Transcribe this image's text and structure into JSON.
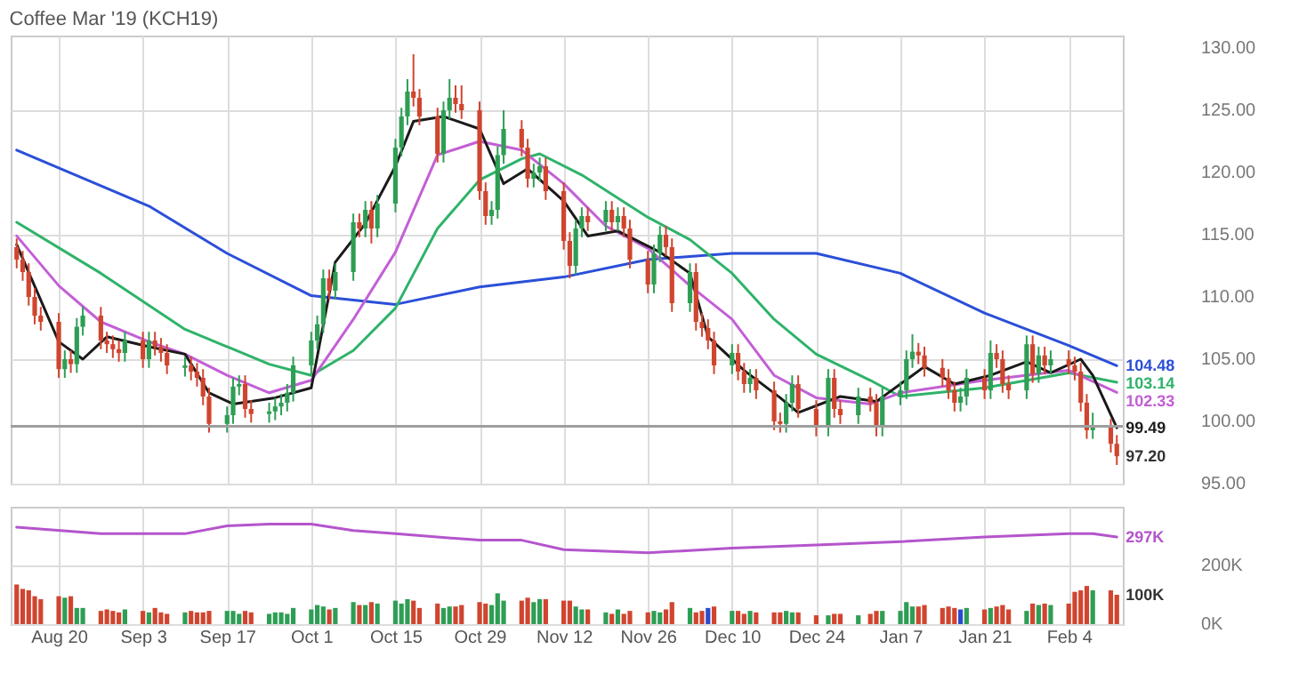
{
  "chart_data": [
    {
      "type": "candlestick",
      "title": "Coffee Mar '19 (KCH19)",
      "x": [
        "2018-08-13",
        "2018-08-14",
        "2018-08-15",
        "2018-08-16",
        "2018-08-17",
        "2018-08-20",
        "2018-08-21",
        "2018-08-22",
        "2018-08-23",
        "2018-08-24",
        "2018-08-27",
        "2018-08-28",
        "2018-08-29",
        "2018-08-30",
        "2018-08-31",
        "2018-09-03",
        "2018-09-04",
        "2018-09-05",
        "2018-09-06",
        "2018-09-07",
        "2018-09-10",
        "2018-09-11",
        "2018-09-12",
        "2018-09-13",
        "2018-09-14",
        "2018-09-17",
        "2018-09-18",
        "2018-09-19",
        "2018-09-20",
        "2018-09-21",
        "2018-09-24",
        "2018-09-25",
        "2018-09-26",
        "2018-09-27",
        "2018-09-28",
        "2018-10-01",
        "2018-10-02",
        "2018-10-03",
        "2018-10-04",
        "2018-10-05",
        "2018-10-08",
        "2018-10-09",
        "2018-10-10",
        "2018-10-11",
        "2018-10-12",
        "2018-10-15",
        "2018-10-16",
        "2018-10-17",
        "2018-10-18",
        "2018-10-19",
        "2018-10-22",
        "2018-10-23",
        "2018-10-24",
        "2018-10-25",
        "2018-10-26",
        "2018-10-29",
        "2018-10-30",
        "2018-10-31",
        "2018-11-01",
        "2018-11-02",
        "2018-11-05",
        "2018-11-06",
        "2018-11-07",
        "2018-11-08",
        "2018-11-09",
        "2018-11-12",
        "2018-11-13",
        "2018-11-14",
        "2018-11-15",
        "2018-11-16",
        "2018-11-19",
        "2018-11-20",
        "2018-11-21",
        "2018-11-22",
        "2018-11-23",
        "2018-11-26",
        "2018-11-27",
        "2018-11-28",
        "2018-11-29",
        "2018-11-30",
        "2018-12-03",
        "2018-12-04",
        "2018-12-05",
        "2018-12-06",
        "2018-12-07",
        "2018-12-10",
        "2018-12-11",
        "2018-12-12",
        "2018-12-13",
        "2018-12-14",
        "2018-12-17",
        "2018-12-18",
        "2018-12-19",
        "2018-12-20",
        "2018-12-21",
        "2018-12-24",
        "2018-12-26",
        "2018-12-27",
        "2018-12-28",
        "2018-12-31",
        "2019-01-02",
        "2019-01-03",
        "2019-01-04",
        "2019-01-07",
        "2019-01-08",
        "2019-01-09",
        "2019-01-10",
        "2019-01-11",
        "2019-01-14",
        "2019-01-15",
        "2019-01-16",
        "2019-01-17",
        "2019-01-18",
        "2019-01-21",
        "2019-01-22",
        "2019-01-23",
        "2019-01-24",
        "2019-01-25",
        "2019-01-28",
        "2019-01-29",
        "2019-01-30",
        "2019-01-31",
        "2019-02-01",
        "2019-02-04",
        "2019-02-05",
        "2019-02-06",
        "2019-02-07",
        "2019-02-08",
        "2019-02-11",
        "2019-02-12"
      ],
      "ohlc": [
        [
          114.0,
          114.7,
          112.3,
          113.0
        ],
        [
          113.0,
          113.7,
          111.3,
          112.0
        ],
        [
          112.0,
          112.7,
          109.3,
          110.0
        ],
        [
          110.0,
          110.7,
          107.8,
          108.5
        ],
        [
          108.5,
          109.2,
          107.3,
          108.0
        ],
        [
          108.0,
          108.7,
          103.5,
          104.2
        ],
        [
          104.2,
          105.7,
          103.5,
          105.0
        ],
        [
          105.0,
          105.7,
          103.9,
          104.6
        ],
        [
          104.6,
          108.3,
          103.9,
          107.6
        ],
        [
          107.6,
          109.2,
          106.9,
          108.5
        ],
        [
          108.5,
          109.2,
          105.8,
          106.5
        ],
        [
          106.5,
          107.2,
          105.5,
          106.2
        ],
        [
          106.2,
          106.9,
          105.1,
          105.8
        ],
        [
          105.8,
          106.5,
          104.8,
          105.5
        ],
        [
          105.5,
          107.2,
          104.8,
          106.5
        ],
        [
          106.5,
          107.2,
          104.3,
          105.0
        ],
        [
          105.0,
          107.2,
          104.3,
          106.5
        ],
        [
          106.5,
          107.2,
          105.3,
          106.0
        ],
        [
          106.0,
          106.7,
          104.8,
          105.5
        ],
        [
          105.5,
          106.2,
          103.8,
          104.5
        ],
        [
          104.3,
          105.2,
          103.6,
          104.5
        ],
        [
          104.5,
          105.2,
          103.3,
          104.0
        ],
        [
          104.0,
          104.7,
          102.8,
          103.5
        ],
        [
          103.5,
          104.2,
          101.3,
          102.0
        ],
        [
          102.0,
          102.7,
          99.1,
          99.8
        ],
        [
          99.8,
          101.2,
          99.1,
          100.5
        ],
        [
          100.5,
          103.5,
          99.8,
          102.8
        ],
        [
          102.8,
          103.7,
          102.1,
          103.0
        ],
        [
          103.0,
          103.7,
          100.3,
          101.0
        ],
        [
          101.0,
          101.7,
          99.9,
          100.6
        ],
        [
          100.6,
          101.5,
          99.9,
          100.8
        ],
        [
          100.8,
          101.9,
          100.1,
          101.2
        ],
        [
          101.2,
          102.2,
          100.5,
          101.5
        ],
        [
          101.5,
          103.0,
          100.8,
          102.3
        ],
        [
          102.3,
          105.2,
          101.6,
          104.5
        ],
        [
          104.5,
          107.2,
          103.8,
          106.5
        ],
        [
          106.5,
          108.5,
          105.8,
          107.8
        ],
        [
          107.8,
          112.2,
          107.1,
          111.5
        ],
        [
          111.5,
          112.2,
          109.8,
          110.5
        ],
        [
          110.5,
          112.7,
          109.8,
          112.0
        ],
        [
          112.0,
          116.7,
          111.3,
          116.0
        ],
        [
          116.0,
          116.7,
          114.8,
          115.5
        ],
        [
          115.5,
          117.7,
          114.8,
          117.0
        ],
        [
          117.0,
          117.7,
          114.3,
          115.5
        ],
        [
          115.5,
          118.2,
          114.8,
          117.5
        ],
        [
          117.5,
          122.7,
          116.8,
          122.0
        ],
        [
          122.0,
          125.2,
          121.3,
          124.5
        ],
        [
          124.5,
          127.5,
          123.8,
          126.5
        ],
        [
          126.5,
          129.5,
          125.3,
          126.0
        ],
        [
          126.0,
          126.7,
          123.8,
          124.5
        ],
        [
          124.5,
          125.2,
          120.8,
          121.5
        ],
        [
          121.5,
          125.7,
          120.8,
          125.0
        ],
        [
          125.0,
          127.5,
          124.3,
          126.0
        ],
        [
          126.0,
          127.0,
          124.8,
          125.5
        ],
        [
          125.5,
          127.0,
          124.3,
          125.0
        ],
        [
          125.0,
          125.7,
          117.8,
          118.5
        ],
        [
          118.5,
          119.2,
          115.8,
          116.5
        ],
        [
          116.5,
          117.7,
          115.8,
          117.0
        ],
        [
          117.0,
          122.1,
          116.3,
          121.4
        ],
        [
          121.4,
          125.0,
          120.7,
          123.5
        ],
        [
          123.5,
          124.2,
          121.3,
          122.0
        ],
        [
          122.0,
          122.7,
          118.8,
          119.5
        ],
        [
          119.5,
          120.7,
          118.8,
          120.0
        ],
        [
          120.0,
          121.2,
          119.3,
          120.5
        ],
        [
          120.5,
          121.2,
          117.8,
          118.5
        ],
        [
          118.5,
          119.2,
          113.8,
          114.5
        ],
        [
          114.5,
          115.2,
          111.5,
          112.5
        ],
        [
          112.5,
          116.2,
          111.8,
          115.5
        ],
        [
          115.5,
          117.2,
          114.8,
          116.5
        ],
        [
          116.5,
          117.2,
          115.3,
          116.0
        ],
        [
          116.0,
          117.7,
          115.3,
          117.0
        ],
        [
          117.0,
          117.7,
          115.3,
          116.0
        ],
        [
          116.0,
          117.2,
          115.3,
          116.5
        ],
        [
          116.5,
          117.2,
          114.8,
          115.5
        ],
        [
          115.5,
          116.2,
          112.3,
          113.0
        ],
        [
          113.0,
          113.7,
          110.3,
          111.0
        ],
        [
          111.0,
          114.2,
          110.3,
          113.5
        ],
        [
          113.5,
          115.7,
          112.8,
          115.0
        ],
        [
          115.0,
          115.7,
          113.3,
          114.0
        ],
        [
          114.0,
          114.7,
          108.8,
          109.5
        ],
        [
          109.5,
          112.7,
          108.8,
          112.0
        ],
        [
          112.0,
          112.7,
          107.3,
          108.0
        ],
        [
          108.0,
          108.7,
          106.8,
          107.5
        ],
        [
          107.5,
          108.2,
          105.8,
          106.5
        ],
        [
          106.5,
          107.2,
          103.8,
          104.5
        ],
        [
          104.5,
          106.2,
          103.8,
          105.5
        ],
        [
          105.5,
          106.2,
          103.3,
          104.0
        ],
        [
          104.0,
          104.7,
          102.3,
          103.0
        ],
        [
          103.0,
          104.2,
          102.3,
          103.5
        ],
        [
          103.5,
          104.2,
          101.8,
          102.5
        ],
        [
          102.5,
          103.2,
          99.3,
          100.0
        ],
        [
          100.0,
          100.7,
          99.1,
          99.8
        ],
        [
          99.8,
          102.2,
          99.1,
          101.5
        ],
        [
          101.5,
          103.7,
          100.8,
          103.0
        ],
        [
          103.0,
          103.7,
          100.3,
          101.0
        ],
        [
          101.0,
          101.7,
          98.8,
          99.5
        ],
        [
          99.5,
          104.2,
          98.8,
          103.5
        ],
        [
          103.5,
          104.2,
          100.3,
          101.0
        ],
        [
          101.0,
          101.7,
          99.8,
          100.5
        ],
        [
          100.5,
          102.7,
          99.8,
          102.0
        ],
        [
          102.0,
          102.7,
          100.8,
          101.5
        ],
        [
          101.5,
          102.2,
          98.8,
          99.5
        ],
        [
          99.5,
          102.7,
          98.8,
          102.0
        ],
        [
          102.0,
          103.2,
          101.3,
          102.5
        ],
        [
          102.5,
          105.7,
          101.8,
          105.0
        ],
        [
          105.0,
          107.0,
          104.3,
          105.6
        ],
        [
          105.6,
          106.3,
          104.6,
          105.3
        ],
        [
          105.3,
          106.0,
          103.6,
          104.3
        ],
        [
          104.3,
          105.0,
          102.8,
          103.5
        ],
        [
          103.5,
          104.2,
          101.8,
          102.5
        ],
        [
          102.5,
          103.2,
          100.8,
          101.5
        ],
        [
          101.5,
          102.7,
          100.8,
          102.0
        ],
        [
          102.0,
          104.2,
          101.3,
          103.5
        ],
        [
          103.5,
          104.2,
          101.8,
          102.5
        ],
        [
          102.5,
          106.5,
          101.8,
          105.5
        ],
        [
          105.5,
          106.2,
          104.3,
          105.0
        ],
        [
          105.0,
          105.7,
          102.3,
          103.0
        ],
        [
          103.0,
          103.7,
          101.8,
          102.5
        ],
        [
          102.5,
          106.9,
          101.8,
          106.2
        ],
        [
          106.2,
          106.9,
          103.1,
          103.8
        ],
        [
          103.8,
          106.0,
          103.1,
          105.3
        ],
        [
          105.3,
          106.0,
          103.8,
          104.5
        ],
        [
          104.5,
          105.7,
          103.8,
          105.0
        ],
        [
          105.0,
          105.7,
          103.8,
          104.5
        ],
        [
          104.5,
          105.2,
          103.3,
          104.0
        ],
        [
          104.0,
          104.7,
          100.8,
          101.5
        ],
        [
          101.5,
          102.2,
          98.6,
          99.3
        ],
        [
          99.3,
          100.7,
          98.6,
          99.5
        ],
        [
          99.5,
          100.2,
          97.5,
          98.2
        ],
        [
          98.2,
          98.9,
          96.5,
          97.2
        ]
      ],
      "colors": [
        "#d0452f",
        "#d0452f",
        "#d0452f",
        "#d0452f",
        "#d0452f",
        "#d0452f",
        "#2e9e55",
        "#d0452f",
        "#2e9e55",
        "#2e9e55",
        "#d0452f",
        "#d0452f",
        "#d0452f",
        "#d0452f",
        "#2e9e55",
        "#d0452f",
        "#2e9e55",
        "#d0452f",
        "#d0452f",
        "#d0452f",
        "#2e9e55",
        "#d0452f",
        "#d0452f",
        "#d0452f",
        "#d0452f",
        "#2e9e55",
        "#2e9e55",
        "#2e9e55",
        "#d0452f",
        "#d0452f",
        "#2e9e55",
        "#2e9e55",
        "#2e9e55",
        "#2e9e55",
        "#2e9e55",
        "#2e9e55",
        "#2e9e55",
        "#2e9e55",
        "#d0452f",
        "#2e9e55",
        "#2e9e55",
        "#d0452f",
        "#2e9e55",
        "#d0452f",
        "#2e9e55",
        "#2e9e55",
        "#2e9e55",
        "#2e9e55",
        "#d0452f",
        "#d0452f",
        "#d0452f",
        "#2e9e55",
        "#2e9e55",
        "#d0452f",
        "#d0452f",
        "#d0452f",
        "#d0452f",
        "#2e9e55",
        "#2e9e55",
        "#2e9e55",
        "#d0452f",
        "#d0452f",
        "#2e9e55",
        "#2e9e55",
        "#d0452f",
        "#d0452f",
        "#d0452f",
        "#2e9e55",
        "#2e9e55",
        "#d0452f",
        "#2e9e55",
        "#d0452f",
        "#2e9e55",
        "#d0452f",
        "#d0452f",
        "#d0452f",
        "#2e9e55",
        "#2e9e55",
        "#d0452f",
        "#d0452f",
        "#2e9e55",
        "#d0452f",
        "#d0452f",
        "#d0452f",
        "#d0452f",
        "#2e9e55",
        "#d0452f",
        "#d0452f",
        "#2e9e55",
        "#d0452f",
        "#d0452f",
        "#d0452f",
        "#2e9e55",
        "#2e9e55",
        "#d0452f",
        "#d0452f",
        "#2e9e55",
        "#d0452f",
        "#d0452f",
        "#2e9e55",
        "#d0452f",
        "#d0452f",
        "#2e9e55",
        "#2e9e55",
        "#2e9e55",
        "#2e9e55",
        "#d0452f",
        "#d0452f",
        "#d0452f",
        "#d0452f",
        "#d0452f",
        "#2e9e55",
        "#2e9e55",
        "#d0452f",
        "#2e9e55",
        "#d0452f",
        "#d0452f",
        "#d0452f",
        "#2e9e55",
        "#d0452f",
        "#2e9e55",
        "#d0452f",
        "#2e9e55",
        "#d0452f",
        "#d0452f",
        "#d0452f",
        "#d0452f",
        "#2e9e55",
        "#d0452f",
        "#d0452f"
      ],
      "series": [
        {
          "type": "line",
          "color": "#2b4fd8",
          "x": [
            "2018-08-13",
            "2018-09-04",
            "2018-09-17",
            "2018-10-01",
            "2018-10-15",
            "2018-10-29",
            "2018-11-12",
            "2018-11-26",
            "2018-12-10",
            "2018-12-24",
            "2019-01-07",
            "2019-01-21",
            "2019-02-04",
            "2019-02-12"
          ],
          "values": [
            121.8,
            117.3,
            113.5,
            110.1,
            109.4,
            110.8,
            111.6,
            113.0,
            113.5,
            113.5,
            111.9,
            108.7,
            106.1,
            104.48
          ],
          "value_labels": [
            null,
            null,
            null,
            null,
            null,
            null,
            null,
            null,
            null,
            null,
            null,
            null,
            null,
            "104.48"
          ]
        },
        {
          "type": "line",
          "color": "#2fb36a",
          "x": [
            "2018-08-13",
            "2018-08-27",
            "2018-09-10",
            "2018-09-24",
            "2018-10-01",
            "2018-10-08",
            "2018-10-15",
            "2018-10-22",
            "2018-10-29",
            "2018-11-05",
            "2018-11-08",
            "2018-11-15",
            "2018-11-26",
            "2018-12-03",
            "2018-12-10",
            "2018-12-17",
            "2018-12-24",
            "2019-01-02",
            "2019-01-07",
            "2019-01-21",
            "2019-02-04",
            "2019-02-12"
          ],
          "values": [
            116.0,
            111.9,
            107.4,
            104.6,
            103.7,
            105.7,
            109.1,
            115.5,
            119.4,
            121.1,
            121.5,
            119.8,
            116.4,
            114.6,
            111.9,
            108.2,
            105.4,
            103.3,
            102.0,
            102.7,
            103.9,
            103.14
          ],
          "value_labels": [
            null,
            null,
            null,
            null,
            null,
            null,
            null,
            null,
            null,
            null,
            null,
            null,
            null,
            null,
            null,
            null,
            null,
            null,
            null,
            null,
            null,
            "103.14"
          ]
        },
        {
          "type": "line",
          "color": "#c35fd6",
          "x": [
            "2018-08-13",
            "2018-08-20",
            "2018-08-27",
            "2018-09-04",
            "2018-09-10",
            "2018-09-17",
            "2018-09-24",
            "2018-10-01",
            "2018-10-08",
            "2018-10-15",
            "2018-10-22",
            "2018-10-29",
            "2018-11-05",
            "2018-11-12",
            "2018-11-19",
            "2018-11-26",
            "2018-12-03",
            "2018-12-10",
            "2018-12-17",
            "2018-12-24",
            "2019-01-02",
            "2019-01-07",
            "2019-01-21",
            "2019-02-04",
            "2019-02-12"
          ],
          "values": [
            114.9,
            110.9,
            108.0,
            106.4,
            105.4,
            103.7,
            102.3,
            103.3,
            108.2,
            113.6,
            121.4,
            122.5,
            121.8,
            119.1,
            115.7,
            113.9,
            110.9,
            108.2,
            103.7,
            101.9,
            101.4,
            102.3,
            103.3,
            104.1,
            102.33
          ],
          "value_labels": [
            null,
            null,
            null,
            null,
            null,
            null,
            null,
            null,
            null,
            null,
            null,
            null,
            null,
            null,
            null,
            null,
            null,
            null,
            null,
            null,
            null,
            null,
            null,
            null,
            "102.33"
          ]
        },
        {
          "type": "line",
          "color": "#1a1a1a",
          "x": [
            "2018-08-13",
            "2018-08-20",
            "2018-08-24",
            "2018-08-28",
            "2018-09-04",
            "2018-09-10",
            "2018-09-14",
            "2018-09-18",
            "2018-09-25",
            "2018-10-01",
            "2018-10-05",
            "2018-10-10",
            "2018-10-15",
            "2018-10-18",
            "2018-10-23",
            "2018-10-29",
            "2018-11-02",
            "2018-11-06",
            "2018-11-12",
            "2018-11-16",
            "2018-11-21",
            "2018-11-28",
            "2018-12-03",
            "2018-12-06",
            "2018-12-12",
            "2018-12-18",
            "2018-12-21",
            "2018-12-28",
            "2019-01-03",
            "2019-01-09",
            "2019-01-11",
            "2019-01-16",
            "2019-01-22",
            "2019-01-28",
            "2019-02-01",
            "2019-02-06",
            "2019-02-08",
            "2019-02-12"
          ],
          "values": [
            114.2,
            106.4,
            105.0,
            106.8,
            106.0,
            105.4,
            102.3,
            101.4,
            101.9,
            102.7,
            112.8,
            115.9,
            120.5,
            124.1,
            124.5,
            123.5,
            119.1,
            120.3,
            117.7,
            114.9,
            115.3,
            113.6,
            111.9,
            106.8,
            104.1,
            101.9,
            100.7,
            102.0,
            101.6,
            103.7,
            104.4,
            103.0,
            103.7,
            104.8,
            103.9,
            105.0,
            103.7,
            99.49
          ],
          "value_labels": [
            null,
            null,
            null,
            null,
            null,
            null,
            null,
            null,
            null,
            null,
            null,
            null,
            null,
            null,
            null,
            null,
            null,
            null,
            null,
            null,
            null,
            null,
            null,
            null,
            null,
            null,
            null,
            null,
            null,
            null,
            null,
            null,
            null,
            null,
            null,
            null,
            null,
            "99.49"
          ]
        }
      ],
      "annotations": [
        {
          "text": "97.20",
          "x": "2019-02-12",
          "y": 97.2
        }
      ],
      "ref_lines": [
        {
          "axis": "y",
          "value": 99.6,
          "color": "#9e9e9e"
        }
      ],
      "xlim": [
        "2018-08-12",
        "2019-02-13"
      ],
      "xticks": [
        {
          "value": "2018-08-20",
          "label": null
        },
        {
          "value": "2018-09-03",
          "label": null
        },
        {
          "value": "2018-09-17",
          "label": null
        },
        {
          "value": "2018-10-01",
          "label": null
        },
        {
          "value": "2018-10-15",
          "label": null
        },
        {
          "value": "2018-10-29",
          "label": null
        },
        {
          "value": "2018-11-12",
          "label": null
        },
        {
          "value": "2018-11-26",
          "label": null
        },
        {
          "value": "2018-12-10",
          "label": null
        },
        {
          "value": "2018-12-24",
          "label": null
        },
        {
          "value": "2019-01-07",
          "label": null
        },
        {
          "value": "2019-01-21",
          "label": null
        },
        {
          "value": "2019-02-04",
          "label": null
        }
      ],
      "ylim": [
        95,
        131
      ],
      "yticks": [
        {
          "value": 95,
          "label": "95.00"
        },
        {
          "value": 100,
          "label": "100.00"
        },
        {
          "value": 105,
          "label": "105.00"
        },
        {
          "value": 110,
          "label": "110.00"
        },
        {
          "value": 115,
          "label": "115.00"
        },
        {
          "value": 120,
          "label": "120.00"
        },
        {
          "value": 125,
          "label": "125.00"
        },
        {
          "value": 130,
          "label": "130.00"
        }
      ],
      "grid": true,
      "tick_labels": "y"
    },
    {
      "type": "bar",
      "x": [
        "2018-08-13",
        "2018-08-14",
        "2018-08-15",
        "2018-08-16",
        "2018-08-17",
        "2018-08-20",
        "2018-08-21",
        "2018-08-22",
        "2018-08-23",
        "2018-08-24",
        "2018-08-27",
        "2018-08-28",
        "2018-08-29",
        "2018-08-30",
        "2018-08-31",
        "2018-09-03",
        "2018-09-04",
        "2018-09-05",
        "2018-09-06",
        "2018-09-07",
        "2018-09-10",
        "2018-09-11",
        "2018-09-12",
        "2018-09-13",
        "2018-09-14",
        "2018-09-17",
        "2018-09-18",
        "2018-09-19",
        "2018-09-20",
        "2018-09-21",
        "2018-09-24",
        "2018-09-25",
        "2018-09-26",
        "2018-09-27",
        "2018-09-28",
        "2018-10-01",
        "2018-10-02",
        "2018-10-03",
        "2018-10-04",
        "2018-10-05",
        "2018-10-08",
        "2018-10-09",
        "2018-10-10",
        "2018-10-11",
        "2018-10-12",
        "2018-10-15",
        "2018-10-16",
        "2018-10-17",
        "2018-10-18",
        "2018-10-19",
        "2018-10-22",
        "2018-10-23",
        "2018-10-24",
        "2018-10-25",
        "2018-10-26",
        "2018-10-29",
        "2018-10-30",
        "2018-10-31",
        "2018-11-01",
        "2018-11-02",
        "2018-11-05",
        "2018-11-06",
        "2018-11-07",
        "2018-11-08",
        "2018-11-09",
        "2018-11-12",
        "2018-11-13",
        "2018-11-14",
        "2018-11-15",
        "2018-11-16",
        "2018-11-19",
        "2018-11-20",
        "2018-11-21",
        "2018-11-22",
        "2018-11-23",
        "2018-11-26",
        "2018-11-27",
        "2018-11-28",
        "2018-11-29",
        "2018-11-30",
        "2018-12-03",
        "2018-12-04",
        "2018-12-05",
        "2018-12-06",
        "2018-12-07",
        "2018-12-10",
        "2018-12-11",
        "2018-12-12",
        "2018-12-13",
        "2018-12-14",
        "2018-12-17",
        "2018-12-18",
        "2018-12-19",
        "2018-12-20",
        "2018-12-21",
        "2018-12-24",
        "2018-12-26",
        "2018-12-27",
        "2018-12-28",
        "2018-12-31",
        "2019-01-02",
        "2019-01-03",
        "2019-01-04",
        "2019-01-07",
        "2019-01-08",
        "2019-01-09",
        "2019-01-10",
        "2019-01-11",
        "2019-01-14",
        "2019-01-15",
        "2019-01-16",
        "2019-01-17",
        "2019-01-18",
        "2019-01-21",
        "2019-01-22",
        "2019-01-23",
        "2019-01-24",
        "2019-01-25",
        "2019-01-28",
        "2019-01-29",
        "2019-01-30",
        "2019-01-31",
        "2019-02-01",
        "2019-02-04",
        "2019-02-05",
        "2019-02-06",
        "2019-02-07",
        "2019-02-08",
        "2019-02-11",
        "2019-02-12"
      ],
      "values": [
        135,
        120,
        115,
        95,
        85,
        95,
        90,
        95,
        55,
        55,
        45,
        50,
        45,
        40,
        50,
        45,
        40,
        55,
        40,
        35,
        40,
        45,
        40,
        40,
        45,
        45,
        45,
        35,
        45,
        40,
        35,
        40,
        40,
        35,
        55,
        50,
        65,
        60,
        50,
        55,
        75,
        65,
        65,
        75,
        70,
        80,
        70,
        85,
        80,
        55,
        70,
        55,
        60,
        60,
        65,
        75,
        70,
        65,
        105,
        80,
        80,
        90,
        75,
        85,
        85,
        80,
        80,
        60,
        50,
        50,
        40,
        35,
        50,
        35,
        45,
        40,
        45,
        40,
        50,
        75,
        55,
        40,
        45,
        55,
        60,
        45,
        45,
        35,
        45,
        40,
        40,
        40,
        45,
        40,
        40,
        30,
        30,
        35,
        35,
        30,
        35,
        45,
        45,
        45,
        75,
        60,
        60,
        65,
        55,
        60,
        55,
        50,
        55,
        50,
        55,
        60,
        65,
        50,
        45,
        70,
        65,
        70,
        65,
        70,
        110,
        115,
        130,
        115,
        115,
        100
      ],
      "colors": [
        "#d0452f",
        "#d0452f",
        "#d0452f",
        "#d0452f",
        "#d0452f",
        "#d0452f",
        "#2e9e55",
        "#d0452f",
        "#2e9e55",
        "#2e9e55",
        "#d0452f",
        "#d0452f",
        "#d0452f",
        "#d0452f",
        "#2e9e55",
        "#d0452f",
        "#2e9e55",
        "#d0452f",
        "#d0452f",
        "#d0452f",
        "#2e9e55",
        "#d0452f",
        "#d0452f",
        "#d0452f",
        "#d0452f",
        "#2e9e55",
        "#2e9e55",
        "#2e9e55",
        "#d0452f",
        "#d0452f",
        "#2e9e55",
        "#2e9e55",
        "#2e9e55",
        "#2e9e55",
        "#2e9e55",
        "#2e9e55",
        "#2e9e55",
        "#2e9e55",
        "#d0452f",
        "#2e9e55",
        "#2e9e55",
        "#d0452f",
        "#2e9e55",
        "#d0452f",
        "#2e9e55",
        "#2e9e55",
        "#2e9e55",
        "#2e9e55",
        "#d0452f",
        "#d0452f",
        "#d0452f",
        "#2e9e55",
        "#2e9e55",
        "#d0452f",
        "#d0452f",
        "#d0452f",
        "#d0452f",
        "#2e9e55",
        "#2e9e55",
        "#2e9e55",
        "#d0452f",
        "#d0452f",
        "#2e9e55",
        "#2e9e55",
        "#d0452f",
        "#d0452f",
        "#d0452f",
        "#2e9e55",
        "#2e9e55",
        "#d0452f",
        "#2e9e55",
        "#d0452f",
        "#2e9e55",
        "#d0452f",
        "#d0452f",
        "#d0452f",
        "#2e9e55",
        "#2e9e55",
        "#d0452f",
        "#d0452f",
        "#2e9e55",
        "#d0452f",
        "#d0452f",
        "#2a4bd0",
        "#d0452f",
        "#2e9e55",
        "#d0452f",
        "#d0452f",
        "#2e9e55",
        "#d0452f",
        "#d0452f",
        "#d0452f",
        "#2e9e55",
        "#2e9e55",
        "#d0452f",
        "#d0452f",
        "#2e9e55",
        "#d0452f",
        "#d0452f",
        "#2e9e55",
        "#d0452f",
        "#d0452f",
        "#2e9e55",
        "#2e9e55",
        "#2e9e55",
        "#2e9e55",
        "#d0452f",
        "#d0452f",
        "#d0452f",
        "#d0452f",
        "#d0452f",
        "#2a4bd0",
        "#2e9e55",
        "#d0452f",
        "#2e9e55",
        "#d0452f",
        "#d0452f",
        "#d0452f",
        "#2e9e55",
        "#d0452f",
        "#2e9e55",
        "#d0452f",
        "#2e9e55",
        "#d0452f",
        "#d0452f",
        "#d0452f",
        "#d0452f",
        "#2e9e55",
        "#d0452f",
        "#d0452f"
      ],
      "series": [
        {
          "type": "line",
          "color": "#b455cc",
          "x": [
            "2018-08-13",
            "2018-08-27",
            "2018-09-10",
            "2018-09-17",
            "2018-09-24",
            "2018-10-01",
            "2018-10-08",
            "2018-10-15",
            "2018-10-29",
            "2018-11-05",
            "2018-11-12",
            "2018-11-26",
            "2018-12-10",
            "2018-12-24",
            "2019-01-07",
            "2019-01-21",
            "2019-02-04",
            "2019-02-08",
            "2019-02-12"
          ],
          "values": [
            330,
            308,
            308,
            335,
            341,
            341,
            319,
            308,
            286,
            286,
            254,
            243,
            259,
            270,
            281,
            297,
            308,
            308,
            297
          ],
          "value_labels": [
            null,
            null,
            null,
            null,
            null,
            null,
            null,
            null,
            null,
            null,
            null,
            null,
            null,
            null,
            null,
            null,
            null,
            null,
            "297K"
          ]
        }
      ],
      "annotations": [
        {
          "text": "100K",
          "x": "2019-02-12",
          "y": 100
        }
      ],
      "xlim": [
        "2018-08-12",
        "2019-02-13"
      ],
      "xticks": [
        {
          "value": "2018-08-20",
          "label": "Aug 20"
        },
        {
          "value": "2018-09-03",
          "label": "Sep 3"
        },
        {
          "value": "2018-09-17",
          "label": "Sep 17"
        },
        {
          "value": "2018-10-01",
          "label": "Oct 1"
        },
        {
          "value": "2018-10-15",
          "label": "Oct 15"
        },
        {
          "value": "2018-10-29",
          "label": "Oct 29"
        },
        {
          "value": "2018-11-12",
          "label": "Nov 12"
        },
        {
          "value": "2018-11-26",
          "label": "Nov 26"
        },
        {
          "value": "2018-12-10",
          "label": "Dec 10"
        },
        {
          "value": "2018-12-24",
          "label": "Dec 24"
        },
        {
          "value": "2019-01-07",
          "label": "Jan 7"
        },
        {
          "value": "2019-01-21",
          "label": "Jan 21"
        },
        {
          "value": "2019-02-04",
          "label": "Feb 4"
        }
      ],
      "ylim": [
        0,
        400
      ],
      "yticks": [
        {
          "value": 0,
          "label": "0K"
        },
        {
          "value": 200,
          "label": "200K"
        }
      ],
      "grid": true
    }
  ]
}
